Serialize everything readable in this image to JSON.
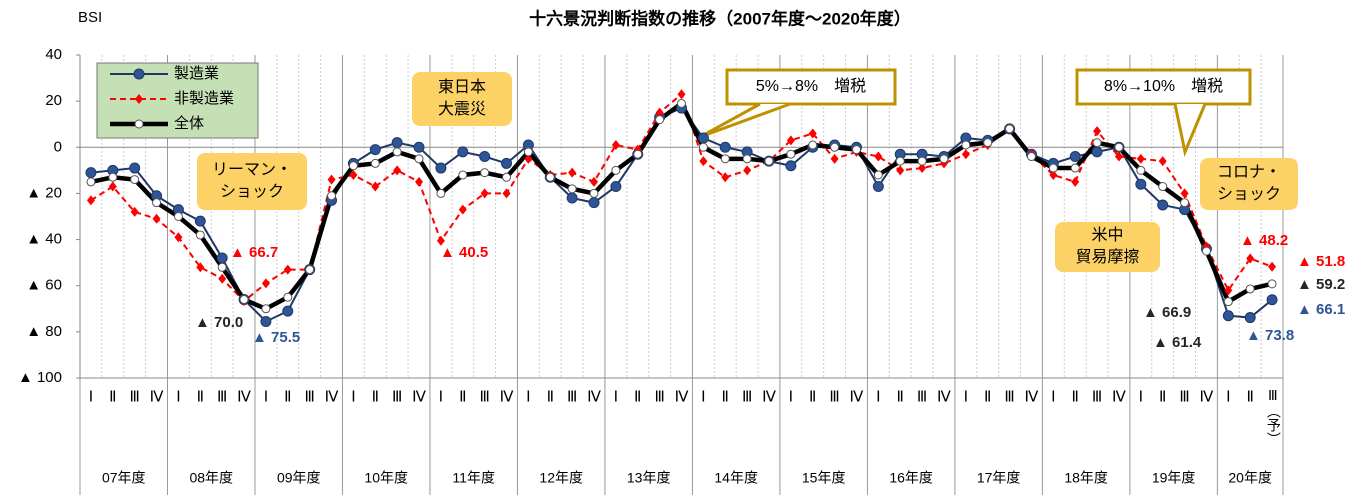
{
  "chart_data": {
    "type": "line",
    "title": "十六景況判断指数の推移（2007年度～2020年度）",
    "y_label": "BSI",
    "categories": [
      "Ⅰ",
      "Ⅱ",
      "Ⅲ",
      "Ⅳ",
      "Ⅰ",
      "Ⅱ",
      "Ⅲ",
      "Ⅳ",
      "Ⅰ",
      "Ⅱ",
      "Ⅲ",
      "Ⅳ",
      "Ⅰ",
      "Ⅱ",
      "Ⅲ",
      "Ⅳ",
      "Ⅰ",
      "Ⅱ",
      "Ⅲ",
      "Ⅳ",
      "Ⅰ",
      "Ⅱ",
      "Ⅲ",
      "Ⅳ",
      "Ⅰ",
      "Ⅱ",
      "Ⅲ",
      "Ⅳ",
      "Ⅰ",
      "Ⅱ",
      "Ⅲ",
      "Ⅳ",
      "Ⅰ",
      "Ⅱ",
      "Ⅲ",
      "Ⅳ",
      "Ⅰ",
      "Ⅱ",
      "Ⅲ",
      "Ⅳ",
      "Ⅰ",
      "Ⅱ",
      "Ⅲ",
      "Ⅳ",
      "Ⅰ",
      "Ⅱ",
      "Ⅲ",
      "Ⅳ",
      "Ⅰ",
      "Ⅱ",
      "Ⅲ",
      "Ⅳ",
      "Ⅰ",
      "Ⅱ",
      "Ⅲ（予）"
    ],
    "year_labels": [
      "07年度",
      "08年度",
      "09年度",
      "10年度",
      "11年度",
      "12年度",
      "13年度",
      "14年度",
      "15年度",
      "16年度",
      "17年度",
      "18年度",
      "19年度",
      "20年度"
    ],
    "ylim": [
      -100,
      40
    ],
    "yticks": [
      {
        "value": -100,
        "label": "▲ 100"
      },
      {
        "value": -80,
        "label": "▲ 80"
      },
      {
        "value": -60,
        "label": "▲ 60"
      },
      {
        "value": -40,
        "label": "▲ 40"
      },
      {
        "value": -20,
        "label": "▲ 20"
      },
      0,
      20,
      40
    ],
    "series": [
      {
        "name": "製造業",
        "color": "#1f3864",
        "values": [
          -11,
          -10,
          -9,
          -21,
          -27,
          -32,
          -48,
          -66,
          -75.5,
          -71,
          -53,
          -23,
          -7,
          -1,
          2,
          0,
          -9,
          -2,
          -4,
          -7,
          1,
          -13,
          -22,
          -24,
          -17,
          -3,
          13,
          17,
          4,
          0,
          -2,
          -6,
          -8,
          0,
          1,
          0,
          -17,
          -3,
          -3,
          -4,
          4,
          3,
          8,
          -3,
          -7,
          -4,
          -2,
          0,
          -16,
          -25,
          -27,
          -44,
          -73,
          -73.8,
          -66.1
        ],
        "value_labels": [
          null,
          null,
          null,
          null,
          null,
          null,
          null,
          null,
          "▲ 75.5",
          null,
          null,
          null,
          null,
          null,
          null,
          null,
          null,
          null,
          null,
          null,
          null,
          null,
          null,
          null,
          null,
          null,
          null,
          null,
          null,
          null,
          null,
          null,
          null,
          null,
          null,
          null,
          null,
          null,
          null,
          null,
          null,
          null,
          null,
          null,
          null,
          null,
          null,
          null,
          null,
          null,
          null,
          null,
          null,
          "▲ 73.8",
          "▲ 66.1"
        ]
      },
      {
        "name": "非製造業",
        "color": "#ff0000",
        "values": [
          -23,
          -17,
          -28,
          -31,
          -39,
          -52,
          -57,
          -66.7,
          -59,
          -53,
          -53,
          -14,
          -12,
          -17,
          -10,
          -15,
          -40.5,
          -27,
          -20,
          -20,
          -5,
          -12,
          -11,
          -15,
          1,
          -1,
          15,
          23,
          -6,
          -13,
          -10,
          -6,
          3,
          6,
          -5,
          -2,
          -4,
          -10,
          -9,
          -7,
          -3,
          1,
          8,
          -3,
          -12,
          -15,
          7,
          -4,
          -5,
          -6,
          -20,
          -43,
          -62,
          -48.2,
          -51.8
        ],
        "value_labels": [
          null,
          null,
          null,
          null,
          null,
          null,
          null,
          "▲ 66.7",
          null,
          null,
          null,
          null,
          null,
          null,
          null,
          null,
          "▲ 40.5",
          null,
          null,
          null,
          null,
          null,
          null,
          null,
          null,
          null,
          null,
          null,
          null,
          null,
          null,
          null,
          null,
          null,
          null,
          null,
          null,
          null,
          null,
          null,
          null,
          null,
          null,
          null,
          null,
          null,
          null,
          null,
          null,
          null,
          null,
          null,
          null,
          "▲ 48.2",
          "▲ 51.8"
        ]
      },
      {
        "name": "全体",
        "color": "#000000",
        "values": [
          -15,
          -13,
          -14,
          -24,
          -30,
          -38,
          -52,
          -66,
          -70.0,
          -65,
          -53,
          -21,
          -8,
          -7,
          -2,
          -5,
          -20,
          -12,
          -11,
          -13,
          -2,
          -13,
          -18,
          -20,
          -10,
          -3,
          12,
          19,
          0,
          -5,
          -5,
          -6,
          -3,
          1,
          0,
          -1,
          -12,
          -6,
          -6,
          -5,
          1,
          2,
          8,
          -4,
          -9,
          -9,
          2,
          0,
          -10,
          -17,
          -24,
          -45,
          -66.9,
          -61.4,
          -59.2
        ],
        "value_labels": [
          null,
          null,
          null,
          null,
          null,
          null,
          null,
          null,
          "▲ 70.0",
          null,
          null,
          null,
          null,
          null,
          null,
          null,
          null,
          null,
          null,
          null,
          null,
          null,
          null,
          null,
          null,
          null,
          null,
          null,
          null,
          null,
          null,
          null,
          null,
          null,
          null,
          null,
          null,
          null,
          null,
          null,
          null,
          null,
          null,
          null,
          null,
          null,
          null,
          null,
          null,
          null,
          null,
          null,
          "▲ 66.9",
          "▲ 61.4",
          "▲ 59.2"
        ]
      }
    ],
    "annotations": [
      {
        "lines": [
          "リーマン・",
          "ショック"
        ]
      },
      {
        "lines": [
          "東日本",
          "大震災"
        ]
      },
      {
        "lines": [
          "5%→8%　増税"
        ]
      },
      {
        "lines": [
          "8%→10%　増税"
        ]
      },
      {
        "lines": [
          "米中",
          "貿易摩擦"
        ]
      },
      {
        "lines": [
          "コロナ・",
          "ショック"
        ]
      }
    ]
  }
}
